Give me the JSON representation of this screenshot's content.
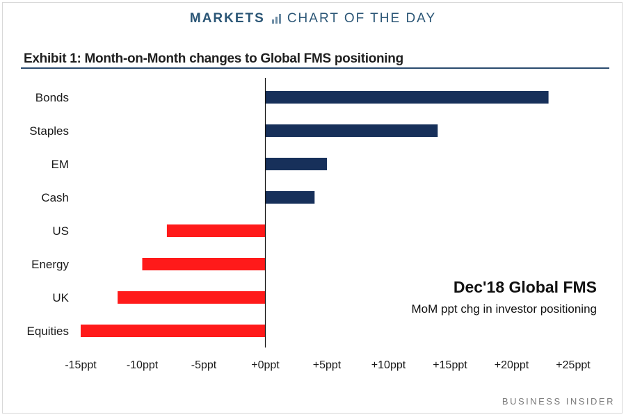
{
  "header": {
    "brand": "MARKETS",
    "section": "CHART OF THE DAY",
    "icon": "bar-chart-icon"
  },
  "exhibit_title": "Exhibit 1: Month-on-Month changes to Global FMS positioning",
  "footer": "BUSINESS INSIDER",
  "colors": {
    "positive": "#17305a",
    "negative": "#ff1a1a",
    "rule": "#2a4a6e",
    "brand": "#2b5676"
  },
  "chart_data": {
    "type": "bar",
    "orientation": "horizontal",
    "title": "Exhibit 1: Month-on-Month changes to Global FMS positioning",
    "categories": [
      "Bonds",
      "Staples",
      "EM",
      "Cash",
      "US",
      "Energy",
      "UK",
      "Equities"
    ],
    "values": [
      23,
      14,
      5,
      4,
      -8,
      -10,
      -12,
      -15
    ],
    "unit": "ppt",
    "xlim": [
      -15,
      25
    ],
    "xticks": [
      -15,
      -10,
      -5,
      0,
      5,
      10,
      15,
      20,
      25
    ],
    "xtick_labels": [
      "-15ppt",
      "-10ppt",
      "-5ppt",
      "+0ppt",
      "+5ppt",
      "+10ppt",
      "+15ppt",
      "+20ppt",
      "+25ppt"
    ],
    "grid": false,
    "annotation": {
      "title": "Dec'18 Global FMS",
      "subtitle": "MoM ppt chg in investor positioning"
    }
  }
}
